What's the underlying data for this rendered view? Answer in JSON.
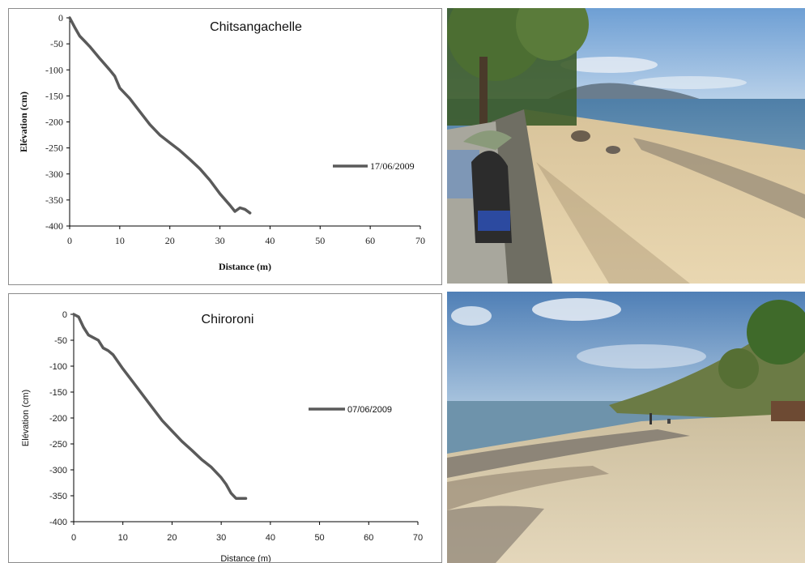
{
  "colors": {
    "series": "#5a5a5a",
    "axis": "#000000"
  },
  "chart_data": [
    {
      "type": "line",
      "title": "Chitsangachelle",
      "xlabel": "Distance (m)",
      "ylabel": "Elévation (cm)",
      "xlim": [
        0,
        70
      ],
      "ylim": [
        -400,
        0
      ],
      "xticks": [
        "0",
        "10",
        "20",
        "30",
        "40",
        "50",
        "60",
        "70"
      ],
      "yticks": [
        "0",
        "-50",
        "-100",
        "-150",
        "-200",
        "-250",
        "-300",
        "-350",
        "-400"
      ],
      "legend": "right",
      "series": [
        {
          "name": "17/06/2009",
          "points": [
            [
              0,
              0
            ],
            [
              1,
              -18
            ],
            [
              2,
              -35
            ],
            [
              3,
              -45
            ],
            [
              4,
              -55
            ],
            [
              6,
              -78
            ],
            [
              8,
              -100
            ],
            [
              9,
              -112
            ],
            [
              10,
              -135
            ],
            [
              12,
              -155
            ],
            [
              14,
              -180
            ],
            [
              16,
              -205
            ],
            [
              18,
              -225
            ],
            [
              20,
              -240
            ],
            [
              22,
              -255
            ],
            [
              24,
              -272
            ],
            [
              26,
              -290
            ],
            [
              28,
              -312
            ],
            [
              30,
              -338
            ],
            [
              32,
              -360
            ],
            [
              33,
              -372
            ],
            [
              34,
              -365
            ],
            [
              35,
              -368
            ],
            [
              36,
              -375
            ]
          ]
        }
      ]
    },
    {
      "type": "line",
      "title": "Chiroroni",
      "xlabel": "Distance (m)",
      "ylabel": "Elévation (cm)",
      "xlim": [
        0,
        70
      ],
      "ylim": [
        -400,
        0
      ],
      "xticks": [
        "0",
        "10",
        "20",
        "30",
        "40",
        "50",
        "60",
        "70"
      ],
      "yticks": [
        "0",
        "-50",
        "-100",
        "-150",
        "-200",
        "-250",
        "-300",
        "-350",
        "-400"
      ],
      "legend": "right",
      "series": [
        {
          "name": "07/06/2009",
          "points": [
            [
              0,
              0
            ],
            [
              1,
              -5
            ],
            [
              2,
              -25
            ],
            [
              3,
              -40
            ],
            [
              4,
              -45
            ],
            [
              5,
              -50
            ],
            [
              6,
              -65
            ],
            [
              7,
              -70
            ],
            [
              8,
              -78
            ],
            [
              10,
              -105
            ],
            [
              12,
              -130
            ],
            [
              14,
              -155
            ],
            [
              16,
              -180
            ],
            [
              18,
              -205
            ],
            [
              20,
              -225
            ],
            [
              22,
              -245
            ],
            [
              24,
              -262
            ],
            [
              26,
              -280
            ],
            [
              28,
              -295
            ],
            [
              30,
              -315
            ],
            [
              31,
              -328
            ],
            [
              32,
              -345
            ],
            [
              33,
              -355
            ],
            [
              35,
              -355
            ]
          ]
        }
      ]
    }
  ]
}
